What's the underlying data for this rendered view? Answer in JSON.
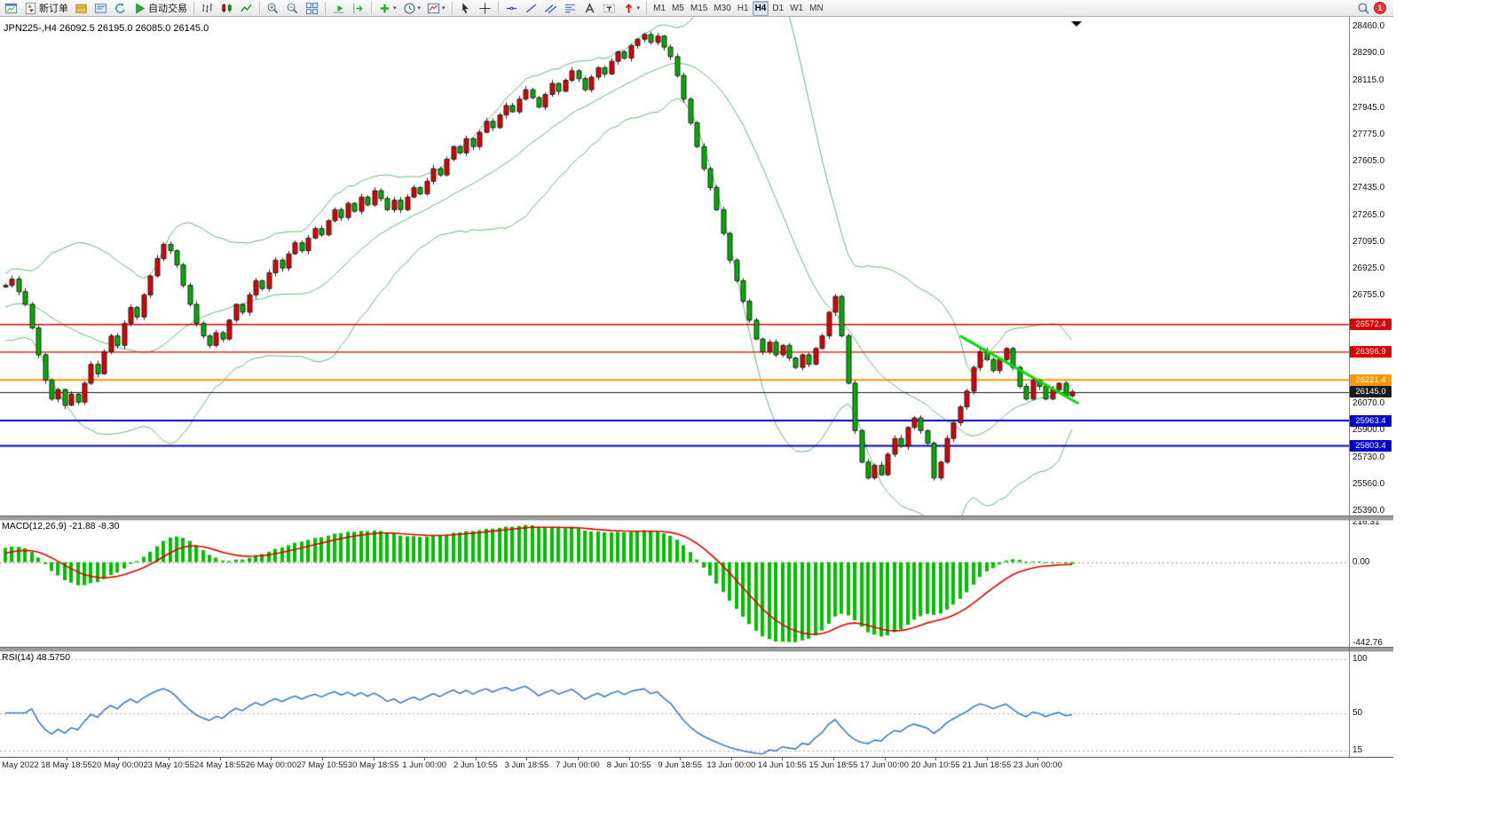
{
  "toolbar": {
    "new_order_label": "新订单",
    "auto_trading_label": "自动交易",
    "timeframes": [
      "M1",
      "M5",
      "M15",
      "M30",
      "H1",
      "H4",
      "D1",
      "W1",
      "MN"
    ],
    "active_timeframe": "H4",
    "notification_count": "1",
    "buttons": [
      {
        "name": "new-chart-button",
        "icon": "chart-window"
      },
      {
        "name": "new-order-button",
        "icon": "new-order",
        "label": "新订单"
      },
      {
        "name": "market-watch-button",
        "icon": "box"
      },
      {
        "name": "data-window-button",
        "icon": "card"
      },
      {
        "name": "refresh-button",
        "icon": "refresh"
      },
      {
        "name": "auto-trading-button",
        "icon": "play",
        "label": "自动交易"
      },
      {
        "sep": true
      },
      {
        "name": "bar-chart-button",
        "icon": "bars"
      },
      {
        "name": "candlestick-chart-button",
        "icon": "candles"
      },
      {
        "name": "line-chart-button",
        "icon": "linechart"
      },
      {
        "sep": true
      },
      {
        "name": "zoom-in-button",
        "icon": "zoom-in"
      },
      {
        "name": "zoom-out-button",
        "icon": "zoom-out"
      },
      {
        "name": "tile-windows-button",
        "icon": "tile"
      },
      {
        "sep": true
      },
      {
        "name": "auto-scroll-button",
        "icon": "autoscroll"
      },
      {
        "name": "chart-shift-button",
        "icon": "shift"
      },
      {
        "sep": true
      },
      {
        "name": "add-indicator-button",
        "icon": "plus",
        "caret": true
      },
      {
        "name": "periods-menu-button",
        "icon": "clock",
        "caret": true
      },
      {
        "name": "templates-button",
        "icon": "template",
        "caret": true
      },
      {
        "sep": true
      },
      {
        "name": "cursor-button",
        "icon": "cursor"
      },
      {
        "name": "crosshair-button",
        "icon": "crosshair"
      },
      {
        "sep": true
      },
      {
        "name": "horizontal-line-button",
        "icon": "hline"
      },
      {
        "name": "trendline-button",
        "icon": "tline"
      },
      {
        "name": "equidistant-channel-button",
        "icon": "channel"
      },
      {
        "name": "fibonacci-button",
        "icon": "fibo"
      },
      {
        "name": "text-button",
        "icon": "text"
      },
      {
        "name": "text-label-button",
        "icon": "label"
      },
      {
        "name": "arrows-button",
        "icon": "arrows",
        "caret": true
      },
      {
        "sep": true
      },
      {
        "name": "timeframe-m1-button",
        "text": "M1"
      },
      {
        "name": "timeframe-m5-button",
        "text": "M5"
      },
      {
        "name": "timeframe-m15-button",
        "text": "M15"
      },
      {
        "name": "timeframe-m30-button",
        "text": "M30"
      },
      {
        "name": "timeframe-h1-button",
        "text": "H1"
      },
      {
        "name": "timeframe-h4-button",
        "text": "H4",
        "active": true
      },
      {
        "name": "timeframe-d1-button",
        "text": "D1"
      },
      {
        "name": "timeframe-w1-button",
        "text": "W1"
      },
      {
        "name": "timeframe-mn-button",
        "text": "MN"
      },
      {
        "spacer": true
      },
      {
        "name": "search-button",
        "icon": "magnifier"
      },
      {
        "name": "notifications-badge",
        "badge": "1"
      }
    ]
  },
  "chart": {
    "symbol_label": "JPN225-,H4 26092.5 26195.0 26085.0 26145.0",
    "macd_label": "MACD(12,26,9) -21.88 -8.30",
    "rsi_label": "RSI(14) 48.5750"
  },
  "chart_data": [
    {
      "type": "candlestick",
      "symbol": "JPN225-",
      "timeframe": "H4",
      "ohlc_display": {
        "open": "26092.5",
        "high": "26195.0",
        "low": "26085.0",
        "close": "26145.0"
      },
      "price_axis": {
        "min": 25390.0,
        "max": 28460.0,
        "ticks": [
          28460.0,
          28290.0,
          28115.0,
          27945.0,
          27775.0,
          27605.0,
          27435.0,
          27265.0,
          27095.0,
          26925.0,
          26755.0,
          26070.0,
          25900.0,
          25730.0,
          25560.0,
          25390.0
        ]
      },
      "x_labels": [
        "May 2022",
        "18 May 18:55",
        "20 May 00:00",
        "23 May 10:55",
        "24 May 18:55",
        "26 May 00:00",
        "27 May 10:55",
        "30 May 18:55",
        "1 Jun 00:00",
        "2 Jun 10:55",
        "3 Jun 18:55",
        "7 Jun 00:00",
        "8 Jun 10:55",
        "9 Jun 18:55",
        "13 Jun 00:00",
        "14 Jun 10:55",
        "15 Jun 18:55",
        "17 Jun 00:00",
        "20 Jun 10:55",
        "21 Jun 18:55",
        "23 Jun 00:00"
      ],
      "note": "close series approximates the visible H4 price path; opens equal previous close, wick extents derived",
      "pre_history_closes": [
        26500,
        26540,
        26580,
        26620,
        26660,
        26700,
        26730,
        26760,
        26790,
        26810
      ],
      "closes": [
        26820,
        26860,
        26780,
        26700,
        26550,
        26380,
        26220,
        26100,
        26160,
        26060,
        26130,
        26080,
        26200,
        26320,
        26260,
        26400,
        26500,
        26440,
        26580,
        26680,
        26620,
        26760,
        26880,
        26990,
        27080,
        27040,
        26950,
        26820,
        26700,
        26580,
        26500,
        26440,
        26520,
        26480,
        26600,
        26700,
        26650,
        26760,
        26850,
        26800,
        26900,
        26980,
        26930,
        27020,
        27090,
        27040,
        27120,
        27180,
        27140,
        27230,
        27300,
        27250,
        27340,
        27290,
        27380,
        27330,
        27420,
        27370,
        27300,
        27360,
        27300,
        27380,
        27440,
        27400,
        27480,
        27560,
        27520,
        27620,
        27700,
        27660,
        27750,
        27700,
        27790,
        27860,
        27820,
        27900,
        27960,
        27920,
        28000,
        28060,
        28010,
        27950,
        28030,
        28100,
        28050,
        28120,
        28180,
        28130,
        28060,
        28140,
        28200,
        28160,
        28240,
        28300,
        28260,
        28340,
        28380,
        28410,
        28360,
        28400,
        28330,
        28270,
        28150,
        28000,
        27850,
        27700,
        27560,
        27440,
        27300,
        27150,
        26980,
        26850,
        26720,
        26600,
        26480,
        26400,
        26460,
        26380,
        26440,
        26360,
        26300,
        26380,
        26320,
        26420,
        26500,
        26650,
        26750,
        26500,
        26200,
        25900,
        25700,
        25600,
        25680,
        25620,
        25750,
        25850,
        25800,
        25920,
        25980,
        25900,
        25820,
        25600,
        25700,
        25850,
        25950,
        26050,
        26150,
        26300,
        26400,
        26350,
        26280,
        26350,
        26420,
        26300,
        26180,
        26100,
        26220,
        26180,
        26100,
        26160,
        26200,
        26120,
        26145
      ],
      "bollinger": {
        "period": 20,
        "deviation": 2,
        "color": "#63b879"
      },
      "horizontal_lines": [
        {
          "price": 26572.4,
          "label": "26572.4",
          "color": "#dd0000",
          "width": 1.4
        },
        {
          "price": 26396.9,
          "label": "26396.9",
          "color": "#dd0000",
          "width": 1.4
        },
        {
          "price": 26221.4,
          "label": "26221.4",
          "color": "#ff9800",
          "width": 2
        },
        {
          "price": 26145.0,
          "label": "26145.0",
          "color": "#1a1a1a",
          "width": 1
        },
        {
          "price": 25963.4,
          "label": "25963.4",
          "color": "#0000cc",
          "width": 2
        },
        {
          "price": 25803.4,
          "label": "25803.4",
          "color": "#0000cc",
          "width": 2
        }
      ],
      "trendline": {
        "from_bar": 145,
        "from_price": 26500,
        "to_bar": 163,
        "to_price": 26070,
        "color": "#00dd00",
        "width": 3
      },
      "colors": {
        "up": "#e00000",
        "down": "#00b000",
        "outline": "#222222",
        "background": "#ffffff"
      }
    },
    {
      "type": "macd-histogram",
      "label": "MACD(12,26,9) -21.88 -8.30",
      "fast": 12,
      "slow": 26,
      "signal_period": 9,
      "current_value": -21.88,
      "current_signal": -8.3,
      "axis_ticks": [
        {
          "value": 216.31,
          "label": "216.31"
        },
        {
          "value": 0,
          "label": "0.00"
        },
        {
          "value": -442.76,
          "label": "-442.76"
        }
      ],
      "colors": {
        "histogram": "#00c000",
        "signal": "#e00000"
      }
    },
    {
      "type": "rsi-line",
      "label": "RSI(14) 48.5750",
      "period": 14,
      "current_value": 48.575,
      "levels": [
        {
          "value": 100,
          "label": "100"
        },
        {
          "value": 50,
          "label": "50"
        },
        {
          "value": 15,
          "label": "15"
        }
      ],
      "color": "#3a7bd5"
    }
  ]
}
